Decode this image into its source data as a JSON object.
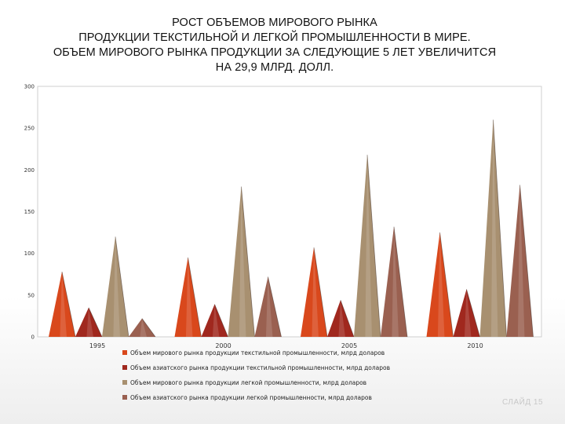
{
  "slide": {
    "title_lines": [
      "РОСТ ОБЪЕМОВ МИРОВОГО РЫНКА",
      "ПРОДУКЦИИ ТЕКСТИЛЬНОЙ И ЛЕГКОЙ ПРОМЫШЛЕННОСТИ  В МИРЕ.",
      "ОБЪЕМ МИРОВОГО РЫНКА ПРОДУКЦИИ ЗА СЛЕДУЮЩИЕ 5 ЛЕТ УВЕЛИЧИТСЯ",
      "НА 29,9 МЛРД. ДОЛЛ."
    ],
    "slide_number": "СЛАЙД 15"
  },
  "chart_data": {
    "type": "bar",
    "shape": "cone",
    "categories": [
      "1995",
      "2000",
      "2005",
      "2010"
    ],
    "ylim": [
      0,
      300
    ],
    "yticks": [
      0,
      50,
      100,
      150,
      200,
      250,
      300
    ],
    "grid": false,
    "legend_position": "bottom",
    "series": [
      {
        "name": "Объем мирового рынка продукции текстильной промышленности, млрд доларов",
        "color": "#d9481c",
        "values": [
          78,
          95,
          107,
          125
        ]
      },
      {
        "name": "Объем азиатского рынка продукции текстильной промышленности, млрд доларов",
        "color": "#a0281e",
        "values": [
          35,
          39,
          44,
          57
        ]
      },
      {
        "name": "Объем мирового рынка продукции легкой промышленности, млрд доларов",
        "color": "#a89070",
        "values": [
          120,
          180,
          218,
          260
        ]
      },
      {
        "name": "Объем азиатского рынка продукции легкой промышленности, млрд доларов",
        "color": "#9a6050",
        "values": [
          22,
          72,
          132,
          182
        ]
      }
    ]
  }
}
